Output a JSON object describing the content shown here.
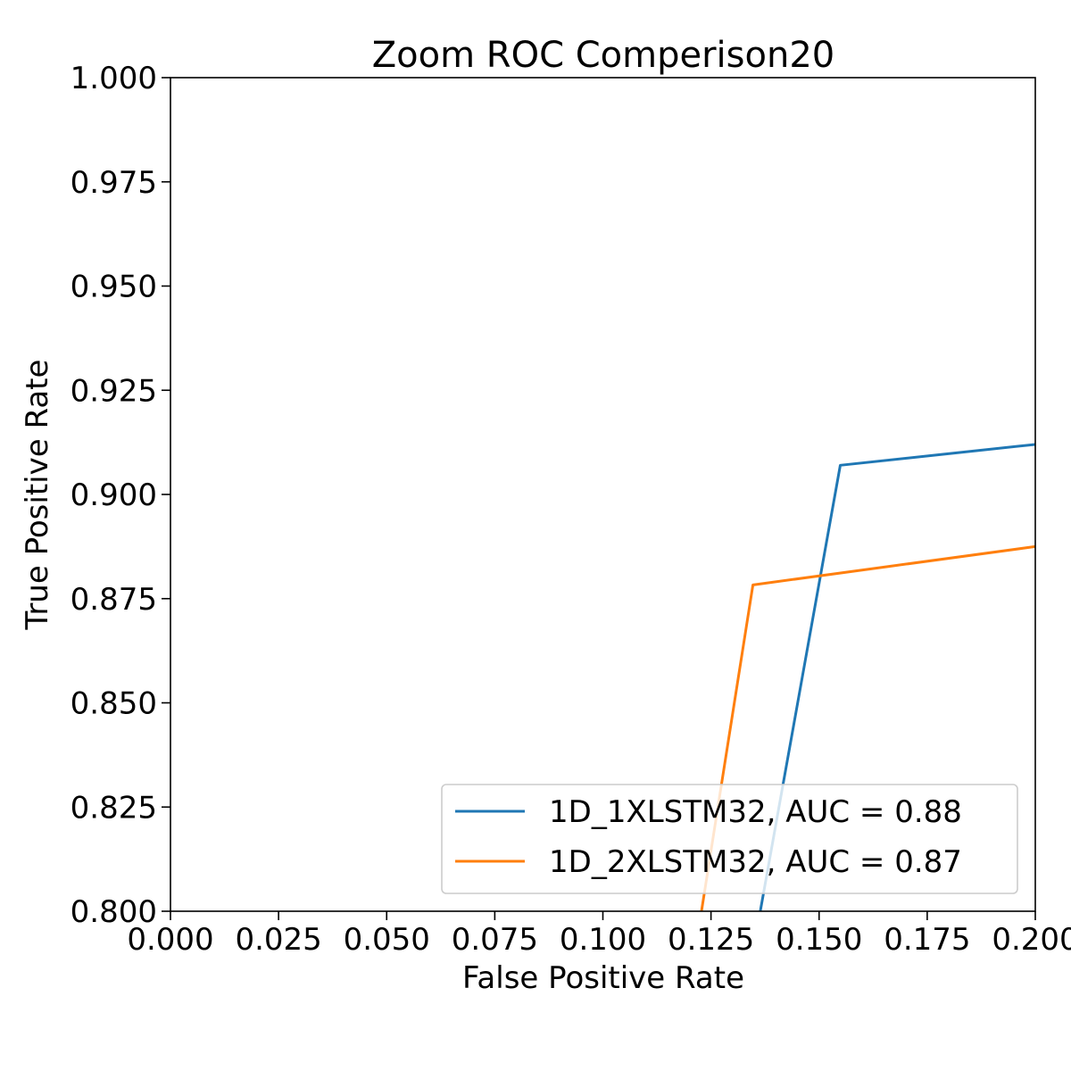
{
  "chart_data": {
    "type": "line",
    "title": "Zoom ROC Comperison20",
    "xlabel": "False Positive Rate",
    "ylabel": "True Positive Rate",
    "xlim": [
      0.0,
      0.2
    ],
    "ylim": [
      0.8,
      1.0
    ],
    "xticks": [
      "0.000",
      "0.025",
      "0.050",
      "0.075",
      "0.100",
      "0.125",
      "0.150",
      "0.175",
      "0.200"
    ],
    "yticks": [
      "0.800",
      "0.825",
      "0.850",
      "0.875",
      "0.900",
      "0.925",
      "0.950",
      "0.975",
      "1.000"
    ],
    "grid": false,
    "legend_position": "lower right",
    "series": [
      {
        "name": "1D_1XLSTM32, AUC = 0.88",
        "color": "#1f77b4",
        "points": [
          [
            0.1364,
            0.8
          ],
          [
            0.1549,
            0.907
          ],
          [
            0.2,
            0.912
          ]
        ]
      },
      {
        "name": "1D_2XLSTM32, AUC = 0.87",
        "color": "#ff7f0e",
        "points": [
          [
            0.1228,
            0.8
          ],
          [
            0.1347,
            0.8783
          ],
          [
            0.2,
            0.8875
          ]
        ]
      }
    ]
  }
}
